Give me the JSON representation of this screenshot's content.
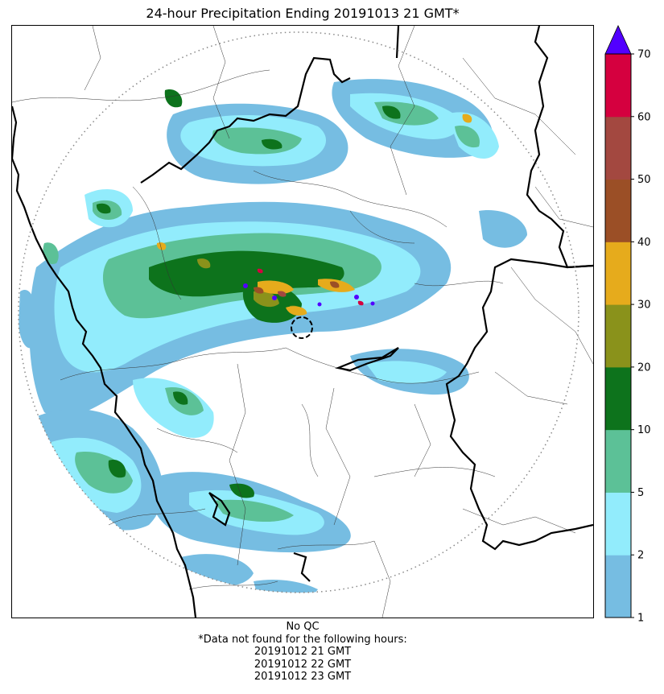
{
  "title": "24-hour Precipitation Ending 20191013 21 GMT*",
  "colorbar": {
    "ticks": [
      "1",
      "2",
      "5",
      "10",
      "20",
      "30",
      "40",
      "50",
      "60",
      "70"
    ],
    "colors": [
      "#76bde2",
      "#92ecfc",
      "#5cc197",
      "#0d731c",
      "#8a921b",
      "#e6ab1c",
      "#9b4f26",
      "#a34840",
      "#d5003f"
    ],
    "over_color": "#5200ff"
  },
  "footer": {
    "qc": "No QC",
    "note": "*Data not found for the following hours:",
    "hours": [
      "20191012 21 GMT",
      "20191012 22 GMT",
      "20191012 23 GMT"
    ]
  }
}
